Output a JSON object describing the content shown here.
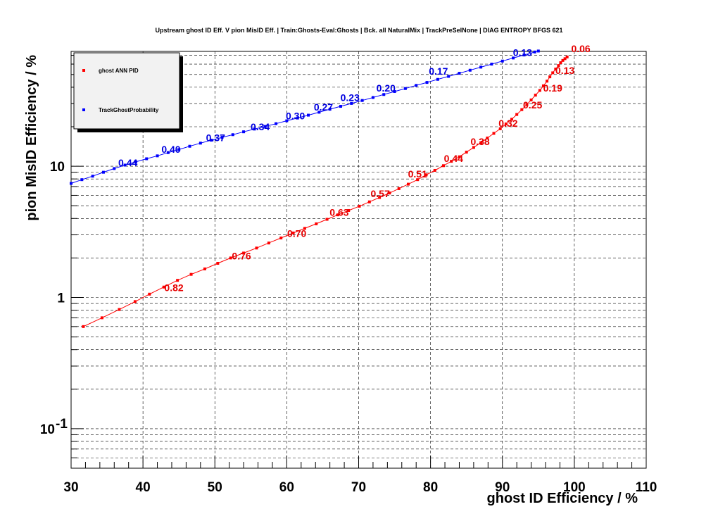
{
  "chart_data": {
    "type": "line",
    "title": "Upstream ghost ID Eff. V pion MisID Eff. | Train:Ghosts-Eval:Ghosts | Bck. all NaturalMix | TrackPreSelNone | DIAG ENTROPY BFGS 621",
    "xlabel": "ghost ID Efficiency / %",
    "ylabel": "pion MisID Efficiency / %",
    "xlim": [
      30,
      110
    ],
    "ylim": [
      0.05,
      75
    ],
    "y_scale": "log",
    "grid": true,
    "legend_position": "top-left",
    "x_ticks": [
      30,
      40,
      50,
      60,
      70,
      80,
      90,
      100,
      110
    ],
    "x_tick_labels": [
      "30",
      "40",
      "50",
      "60",
      "70",
      "80",
      "90",
      "100",
      "110"
    ],
    "y_ticks": [
      0.1,
      1,
      10
    ],
    "y_tick_labels": [
      {
        "base": "10",
        "exp": "-1"
      },
      {
        "base": "1",
        "exp": ""
      },
      {
        "base": "10",
        "exp": ""
      }
    ],
    "series": [
      {
        "name": "ghost ANN PID",
        "color": "#ff0000",
        "label_color": "#e60000",
        "x": [
          31.7,
          34.3,
          36.7,
          38.9,
          40.9,
          42.9,
          44.8,
          46.7,
          48.6,
          50.4,
          52.2,
          54.0,
          55.8,
          57.5,
          59.2,
          60.9,
          62.5,
          64.1,
          65.6,
          67.1,
          68.6,
          70.1,
          71.5,
          72.9,
          74.3,
          75.6,
          76.9,
          78.2,
          79.4,
          80.6,
          81.8,
          82.9,
          84.0,
          85.0,
          86.0,
          87.0,
          87.9,
          88.8,
          89.7,
          90.5,
          91.3,
          92.0,
          92.7,
          93.4,
          94.0,
          94.6,
          95.2,
          95.7,
          96.2,
          96.6,
          97.0,
          97.4,
          97.8,
          98.1,
          98.4,
          98.7,
          99.0
        ],
        "y": [
          0.6,
          0.7,
          0.81,
          0.93,
          1.06,
          1.2,
          1.35,
          1.5,
          1.65,
          1.82,
          2.0,
          2.18,
          2.38,
          2.6,
          2.84,
          3.1,
          3.36,
          3.64,
          3.94,
          4.26,
          4.6,
          4.96,
          5.35,
          5.78,
          6.25,
          6.75,
          7.3,
          7.9,
          8.6,
          9.3,
          10.1,
          10.9,
          11.8,
          12.8,
          13.9,
          15.1,
          16.4,
          17.8,
          19.3,
          21.0,
          22.8,
          24.8,
          27.0,
          29.5,
          32.0,
          34.8,
          37.8,
          41.0,
          44.5,
          48.0,
          51.5,
          55.0,
          58.5,
          61.5,
          64.0,
          66.0,
          68.0
        ],
        "point_labels": [
          {
            "text": "0.82",
            "x": 44.3,
            "y": 1.12
          },
          {
            "text": "0.76",
            "x": 53.7,
            "y": 1.95
          },
          {
            "text": "0.70",
            "x": 61.4,
            "y": 2.9
          },
          {
            "text": "0.63",
            "x": 67.3,
            "y": 4.2
          },
          {
            "text": "0.57",
            "x": 73.0,
            "y": 5.8
          },
          {
            "text": "0.51",
            "x": 78.2,
            "y": 8.2
          },
          {
            "text": "0.44",
            "x": 83.2,
            "y": 10.8
          },
          {
            "text": "0.38",
            "x": 86.9,
            "y": 14.5
          },
          {
            "text": "0.32",
            "x": 90.8,
            "y": 20.0
          },
          {
            "text": "0.25",
            "x": 94.2,
            "y": 27.5
          },
          {
            "text": "0.19",
            "x": 97.0,
            "y": 37.0
          },
          {
            "text": "0.13",
            "x": 98.7,
            "y": 50.5
          },
          {
            "text": "0.06",
            "x": 100.9,
            "y": 74.0
          }
        ]
      },
      {
        "name": "TrackGhostProbability",
        "color": "#0000ff",
        "label_color": "#0000e0",
        "x": [
          30.0,
          31.5,
          33.0,
          34.5,
          36.0,
          37.5,
          39.0,
          40.5,
          42.0,
          43.5,
          45.0,
          46.5,
          48.0,
          49.5,
          51.0,
          52.5,
          54.0,
          55.5,
          57.0,
          58.5,
          60.0,
          61.5,
          63.0,
          64.5,
          66.0,
          67.5,
          69.0,
          70.5,
          72.0,
          73.5,
          75.0,
          76.5,
          78.0,
          79.5,
          81.0,
          82.5,
          84.0,
          85.5,
          87.0,
          88.5,
          90.0,
          91.5,
          93.0,
          94.5,
          95.0
        ],
        "y": [
          7.4,
          7.9,
          8.4,
          9.0,
          9.6,
          10.2,
          10.8,
          11.4,
          12.0,
          12.7,
          13.4,
          14.2,
          15.0,
          15.8,
          16.6,
          17.4,
          18.3,
          19.2,
          20.1,
          21.1,
          22.2,
          23.3,
          24.5,
          25.8,
          27.2,
          28.6,
          30.1,
          31.7,
          33.4,
          35.2,
          37.1,
          39.1,
          41.3,
          43.5,
          45.9,
          48.4,
          51.1,
          53.9,
          56.9,
          60.0,
          63.3,
          66.8,
          70.4,
          74.2,
          75.5
        ],
        "point_labels": [
          {
            "text": "0.44",
            "x": 37.9,
            "y": 10.0
          },
          {
            "text": "0.40",
            "x": 43.9,
            "y": 12.7
          },
          {
            "text": "0.37",
            "x": 50.1,
            "y": 15.5
          },
          {
            "text": "0.34",
            "x": 56.3,
            "y": 18.8
          },
          {
            "text": "0.30",
            "x": 61.2,
            "y": 22.7
          },
          {
            "text": "0.27",
            "x": 65.1,
            "y": 26.6
          },
          {
            "text": "0.23",
            "x": 68.8,
            "y": 31.4
          },
          {
            "text": "0.20",
            "x": 73.8,
            "y": 37.0
          },
          {
            "text": "0.17",
            "x": 81.1,
            "y": 50.0
          },
          {
            "text": "0.13",
            "x": 92.8,
            "y": 69.0
          }
        ]
      }
    ]
  }
}
